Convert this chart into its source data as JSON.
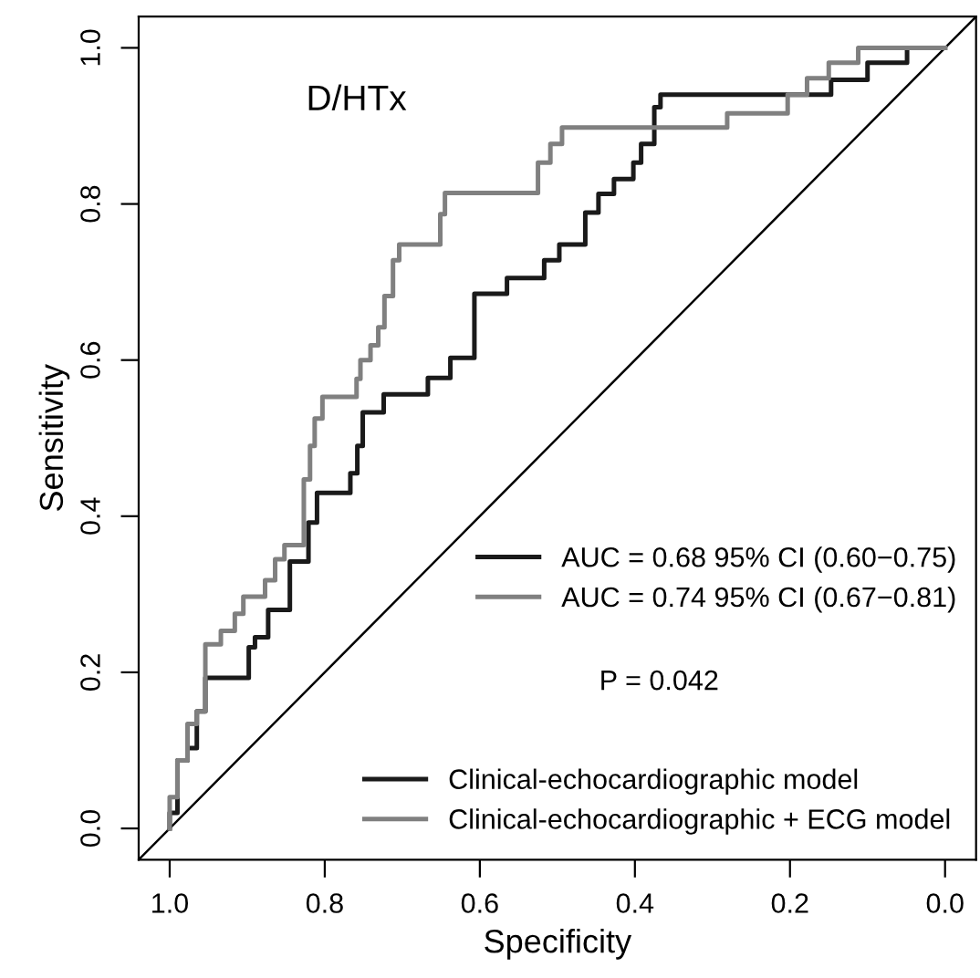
{
  "chart_data": {
    "type": "line",
    "title": "D/HTx",
    "xlabel": "Specificity",
    "ylabel": "Sensitivity",
    "xlim": [
      1.04,
      -0.04
    ],
    "ylim": [
      -0.04,
      1.04
    ],
    "xticks": [
      {
        "value": 1,
        "label": "1.0"
      },
      0.8,
      0.6,
      0.4,
      0.2,
      {
        "value": 0,
        "label": "0.0"
      }
    ],
    "yticks": [
      {
        "value": 0,
        "label": "0.0"
      },
      0.2,
      0.4,
      0.6,
      0.8,
      {
        "value": 1,
        "label": "1.0"
      }
    ],
    "grid": false,
    "legend": "bottom right",
    "line_style": "solid",
    "annotations": [
      "AUC = 0.68 95% CI (0.60−0.75)",
      "AUC = 0.74 95% CI (0.67−0.81)",
      "P = 0.042"
    ],
    "series": [
      {
        "type": "line",
        "color": "#000000",
        "x": [
          1.04,
          -0.04
        ],
        "values": [
          -0.04,
          1.04
        ]
      },
      {
        "name": "Clinical-echocardiographic model",
        "color": "#1a1a1a",
        "x": [
          1.0,
          1.0,
          0.99,
          0.99,
          0.977,
          0.977,
          0.965,
          0.965,
          0.954,
          0.954,
          0.898,
          0.898,
          0.89,
          0.89,
          0.873,
          0.873,
          0.845,
          0.845,
          0.821,
          0.821,
          0.81,
          0.81,
          0.767,
          0.767,
          0.758,
          0.758,
          0.751,
          0.751,
          0.724,
          0.724,
          0.667,
          0.667,
          0.638,
          0.638,
          0.607,
          0.607,
          0.565,
          0.565,
          0.517,
          0.517,
          0.4975,
          0.4975,
          0.464,
          0.464,
          0.447,
          0.447,
          0.427,
          0.427,
          0.402,
          0.402,
          0.392,
          0.392,
          0.375,
          0.375,
          0.367,
          0.367,
          0.147,
          0.147,
          0.1,
          0.1,
          0.049,
          0.049,
          0.0
        ],
        "values": [
          0.0,
          0.02,
          0.02,
          0.087,
          0.087,
          0.103,
          0.103,
          0.15,
          0.15,
          0.193,
          0.193,
          0.232,
          0.232,
          0.245,
          0.245,
          0.28,
          0.28,
          0.342,
          0.342,
          0.392,
          0.392,
          0.43,
          0.43,
          0.455,
          0.455,
          0.49,
          0.49,
          0.533,
          0.533,
          0.556,
          0.556,
          0.577,
          0.577,
          0.603,
          0.603,
          0.685,
          0.685,
          0.705,
          0.705,
          0.728,
          0.728,
          0.748,
          0.748,
          0.789,
          0.789,
          0.813,
          0.813,
          0.832,
          0.832,
          0.853,
          0.853,
          0.877,
          0.877,
          0.924,
          0.924,
          0.94,
          0.94,
          0.959,
          0.959,
          0.981,
          0.981,
          1.0,
          1.0
        ]
      },
      {
        "name": "Clinical-echocardiographic + ECG model",
        "color": "#808080",
        "x": [
          1.0,
          1.0,
          0.99,
          0.99,
          0.977,
          0.977,
          0.965,
          0.965,
          0.954,
          0.954,
          0.934,
          0.934,
          0.916,
          0.916,
          0.905,
          0.905,
          0.877,
          0.877,
          0.864,
          0.864,
          0.852,
          0.852,
          0.827,
          0.827,
          0.819,
          0.819,
          0.813,
          0.813,
          0.803,
          0.803,
          0.794,
          0.794,
          0.759,
          0.759,
          0.754,
          0.754,
          0.741,
          0.741,
          0.731,
          0.731,
          0.723,
          0.723,
          0.712,
          0.712,
          0.704,
          0.704,
          0.651,
          0.651,
          0.645,
          0.645,
          0.525,
          0.525,
          0.509,
          0.509,
          0.494,
          0.494,
          0.281,
          0.281,
          0.203,
          0.203,
          0.178,
          0.178,
          0.15,
          0.15,
          0.112,
          0.112,
          0.0
        ],
        "values": [
          0.0,
          0.04,
          0.04,
          0.087,
          0.087,
          0.134,
          0.134,
          0.15,
          0.15,
          0.236,
          0.236,
          0.253,
          0.253,
          0.275,
          0.275,
          0.297,
          0.297,
          0.318,
          0.318,
          0.345,
          0.345,
          0.363,
          0.363,
          0.447,
          0.447,
          0.49,
          0.49,
          0.525,
          0.525,
          0.553,
          0.553,
          0.553,
          0.553,
          0.576,
          0.576,
          0.6,
          0.6,
          0.619,
          0.619,
          0.642,
          0.642,
          0.682,
          0.682,
          0.728,
          0.728,
          0.748,
          0.748,
          0.787,
          0.787,
          0.814,
          0.814,
          0.853,
          0.853,
          0.877,
          0.877,
          0.898,
          0.898,
          0.916,
          0.916,
          0.94,
          0.94,
          0.961,
          0.961,
          0.981,
          0.981,
          1.0,
          1.0
        ]
      }
    ]
  }
}
